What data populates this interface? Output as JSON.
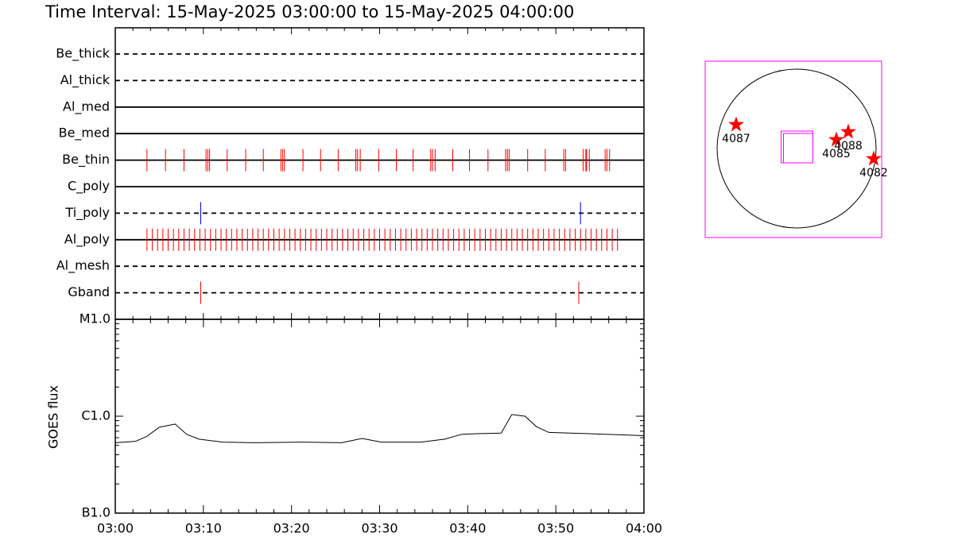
{
  "title": "Time Interval: 15-May-2025 03:00:00 to 15-May-2025 04:00:00",
  "chart_data": [
    {
      "type": "event",
      "categories": [
        "Be_thick",
        "Al_thick",
        "Al_med",
        "Be_med",
        "Be_thin",
        "C_poly",
        "Ti_poly",
        "Al_poly",
        "Al_mesh",
        "Gband"
      ],
      "dashed": [
        true,
        true,
        false,
        false,
        false,
        false,
        true,
        false,
        true,
        true
      ],
      "colors": [
        "#ff0000",
        "#ff0000",
        "#ff0000",
        "#ff0000",
        "#ff0000",
        "#ff0000",
        "#0000ff",
        "#ff0000",
        "#ff0000",
        "#ff0000"
      ],
      "events": [
        [],
        [],
        [],
        [],
        [
          3.6,
          5.7,
          7.8,
          10.3,
          10.5,
          10.7,
          12.7,
          14.8,
          16.8,
          18.8,
          19.0,
          19.2,
          21.3,
          23.3,
          25.3,
          27.3,
          27.5,
          27.8,
          29.9,
          31.9,
          33.8,
          35.8,
          36.0,
          36.3,
          38.3,
          40.2,
          42.3,
          44.3,
          44.5,
          44.7,
          46.8,
          48.8,
          50.9,
          51.1,
          53.1,
          53.4,
          53.5,
          53.8,
          55.6,
          55.8,
          56.1
        ],
        [],
        [
          9.7,
          52.8
        ],
        [
          3.6,
          4.2,
          4.8,
          5.4,
          6.0,
          6.6,
          7.2,
          7.8,
          8.4,
          9.0,
          9.6,
          10.2,
          10.8,
          11.4,
          12.0,
          12.6,
          13.2,
          13.8,
          14.4,
          15.0,
          15.6,
          16.2,
          16.8,
          17.4,
          18.0,
          18.6,
          19.2,
          19.8,
          20.4,
          21.0,
          21.6,
          22.2,
          22.8,
          23.4,
          24.0,
          24.6,
          25.2,
          25.8,
          26.4,
          27.0,
          27.6,
          28.2,
          28.8,
          29.4,
          30.0,
          30.6,
          31.2,
          31.8,
          32.4,
          33.0,
          33.6,
          34.2,
          34.8,
          35.4,
          36.0,
          36.6,
          37.2,
          37.8,
          38.4,
          39.0,
          39.6,
          40.2,
          40.8,
          41.4,
          42.0,
          42.6,
          43.2,
          43.8,
          44.4,
          45.0,
          45.6,
          46.2,
          46.8,
          47.4,
          48.0,
          48.6,
          49.2,
          49.8,
          50.4,
          51.0,
          51.6,
          52.2,
          52.8,
          53.4,
          54.0,
          54.6,
          55.2,
          55.8,
          56.4,
          57.0
        ],
        [],
        [
          9.7,
          52.6
        ]
      ]
    },
    {
      "type": "line",
      "ylabel": "GOES flux",
      "color": "#000000",
      "log": true,
      "x": [
        0,
        2.3,
        3.6,
        5.0,
        6.8,
        8.1,
        9.5,
        12.2,
        15.8,
        21.2,
        25.7,
        28.0,
        30.2,
        34.7,
        37.4,
        39.3,
        41.1,
        43.8,
        45.0,
        46.5,
        47.8,
        49.2,
        53.7,
        60
      ],
      "values": [
        5.33e-07,
        5.5e-07,
        6.2e-07,
        7.7e-07,
        8.3e-07,
        6.5e-07,
        5.8e-07,
        5.4e-07,
        5.33e-07,
        5.4e-07,
        5.33e-07,
        5.9e-07,
        5.4e-07,
        5.4e-07,
        5.8e-07,
        6.5e-07,
        6.6e-07,
        6.7e-07,
        1.04e-06,
        1e-06,
        7.8e-07,
        6.8e-07,
        6.6e-07,
        6.3e-07
      ],
      "xlim": [
        0,
        60
      ],
      "xticks": [
        {
          "value": 0,
          "label": "03:00"
        },
        {
          "value": 10,
          "label": "03:10"
        },
        {
          "value": 20,
          "label": "03:20"
        },
        {
          "value": 30,
          "label": "03:30"
        },
        {
          "value": 40,
          "label": "03:40"
        },
        {
          "value": 50,
          "label": "03:50"
        },
        {
          "value": 60,
          "label": "04:00"
        }
      ],
      "ylim": [
        1e-07,
        1e-05
      ],
      "yticks": [
        {
          "value": 1e-07,
          "label": "B1.0"
        },
        {
          "value": 1e-06,
          "label": "C1.0"
        },
        {
          "value": 1e-05,
          "label": "M1.0"
        }
      ]
    },
    {
      "type": "map",
      "color": "#ff0000",
      "box_color": "#ff00ff",
      "xlim": [
        -1.15,
        1.07
      ],
      "ylim": [
        -1.12,
        1.1
      ],
      "fov": {
        "x": 0.005,
        "y": 0.02,
        "size": 0.4
      },
      "points": [
        {
          "label": "4087",
          "x": -0.76,
          "y": 0.3
        },
        {
          "label": "4085",
          "x": 0.5,
          "y": 0.11
        },
        {
          "label": "4088",
          "x": 0.65,
          "y": 0.21
        },
        {
          "label": "4082",
          "x": 0.97,
          "y": -0.13
        }
      ]
    }
  ]
}
